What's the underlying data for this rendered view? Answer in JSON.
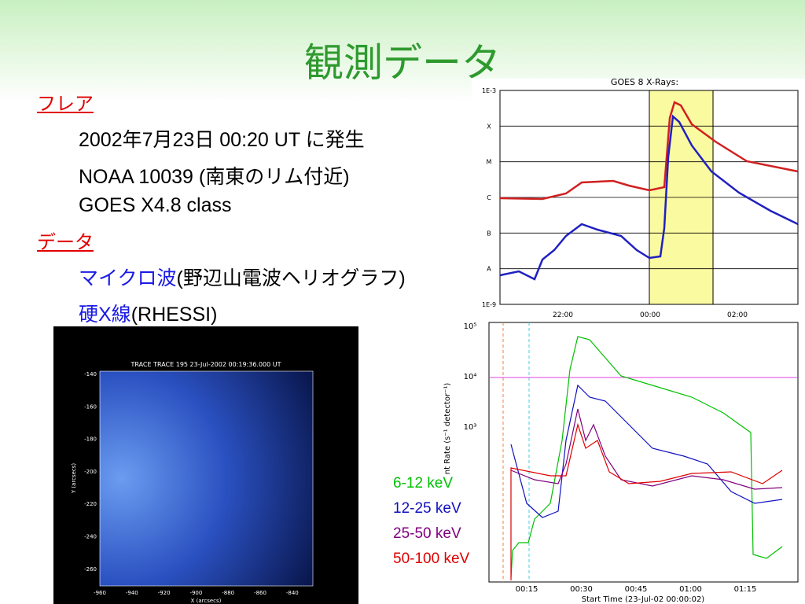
{
  "title": "観測データ",
  "sections": [
    {
      "heading": "フレア",
      "lines": [
        [
          {
            "text": "2002年7月23日 00:20 UT に発生"
          }
        ],
        [
          {
            "text": "NOAA 10039 (南東のリム付近)"
          }
        ],
        [
          {
            "text": "GOES X4.8 class"
          }
        ]
      ]
    },
    {
      "heading": "データ",
      "lines": [
        [
          {
            "text": "マイクロ波",
            "color": "#1a1ae6"
          },
          {
            "text": "(野辺山電波ヘリオグラフ)"
          }
        ],
        [
          {
            "text": "硬X線",
            "color": "#1a1ae6"
          },
          {
            "text": "(RHESSI)"
          }
        ]
      ]
    }
  ],
  "goes": {
    "title": "GOES 8 X-Rays:",
    "y_labels": [
      "1E-3",
      "X",
      "M",
      "C",
      "B",
      "A",
      "1E-9"
    ],
    "x_labels": [
      "22:00",
      "00:00",
      "02:00"
    ]
  },
  "trace": {
    "title": "TRACE TRACE 195 23-Jul-2002 00:19:36.000 UT",
    "y_ticks": [
      "-140",
      "-160",
      "-180",
      "-200",
      "-220",
      "-240",
      "-260"
    ],
    "x_ticks": [
      "-960",
      "-940",
      "-920",
      "-900",
      "-880",
      "-860",
      "-840"
    ],
    "y_label": "Y (arcsecs)",
    "x_label": "X (arcsecs)"
  },
  "rhessi": {
    "y_ticks": [
      "10⁵",
      "10⁴",
      "10³"
    ],
    "y_label": "nt Rate (s⁻¹ detector⁻¹)",
    "x_ticks": [
      "00:15",
      "00:30",
      "00:45",
      "01:00",
      "01:15"
    ],
    "x_label": "Start Time (23-Jul-02 00:00:02)",
    "legend": [
      {
        "name": "6-12 keV",
        "color": "#00c000"
      },
      {
        "name": "12-25 keV",
        "color": "#1010c0"
      },
      {
        "name": "25-50 keV",
        "color": "#800080"
      },
      {
        "name": "50-100 keV",
        "color": "#e00000"
      }
    ]
  }
}
